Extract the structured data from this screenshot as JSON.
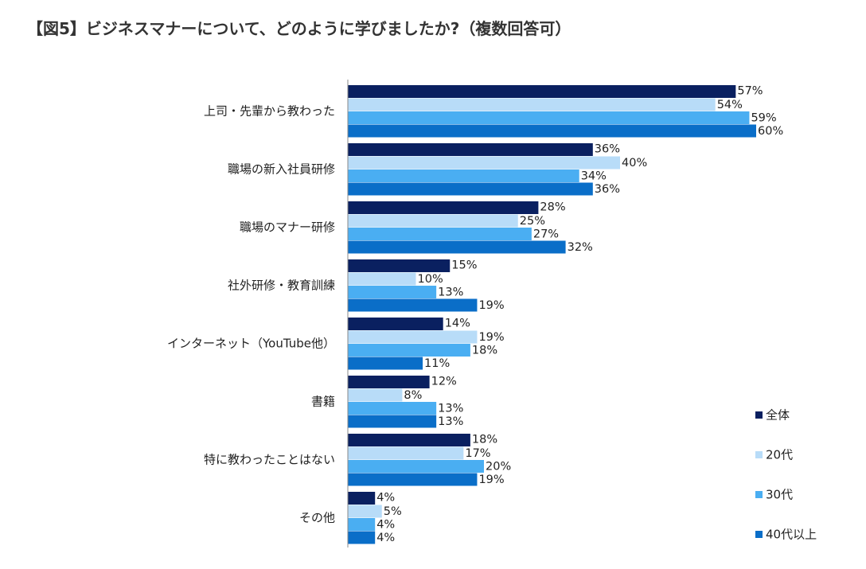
{
  "title": "【図5】ビジネスマナーについて、どのように学びましたか?（複数回答可）",
  "chart_data": {
    "type": "bar",
    "orientation": "horizontal",
    "unit": "%",
    "xlim": [
      0,
      100
    ],
    "grid": false,
    "legend_position": "bottom-right",
    "categories": [
      "上司・先輩から教わった",
      "職場の新入社員研修",
      "職場のマナー研修",
      "社外研修・教育訓練",
      "インターネット（YouTube他）",
      "書籍",
      "特に教わったことはない",
      "その他"
    ],
    "series": [
      {
        "name": "全体",
        "color": "#0a2060",
        "values": [
          57,
          36,
          28,
          15,
          14,
          12,
          18,
          4
        ]
      },
      {
        "name": "20代",
        "color": "#b8dcf8",
        "values": [
          54,
          40,
          25,
          10,
          19,
          8,
          17,
          5
        ]
      },
      {
        "name": "30代",
        "color": "#4aaef2",
        "values": [
          59,
          34,
          27,
          13,
          18,
          13,
          20,
          4
        ]
      },
      {
        "name": "40代以上",
        "color": "#0a6ec8",
        "values": [
          60,
          36,
          32,
          19,
          11,
          13,
          19,
          4
        ]
      }
    ]
  }
}
